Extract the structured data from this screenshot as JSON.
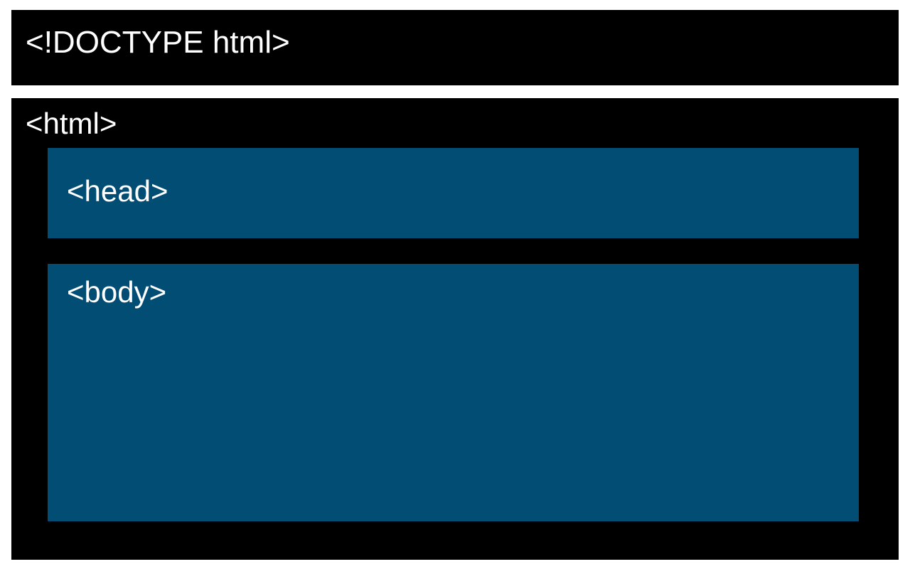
{
  "diagram": {
    "doctype": {
      "label": "<!DOCTYPE html>"
    },
    "html": {
      "label": "<html>"
    },
    "head": {
      "label": "<head>"
    },
    "body": {
      "label": "<body>"
    }
  },
  "colors": {
    "outer_block": "#000000",
    "inner_block": "#024d74",
    "text": "#ffffff",
    "background": "#ffffff"
  }
}
